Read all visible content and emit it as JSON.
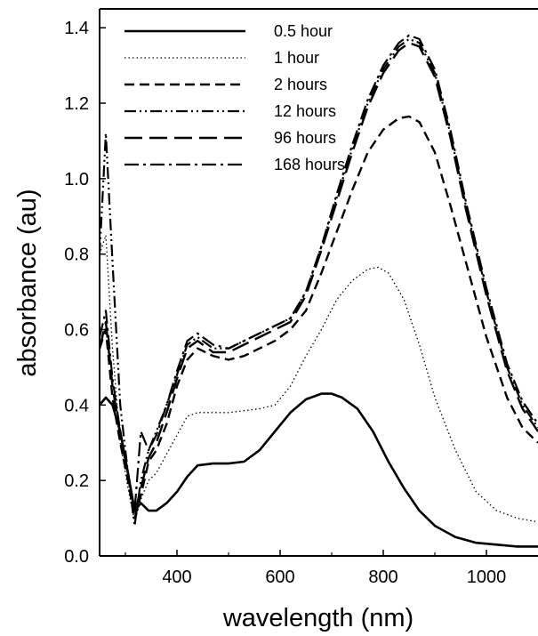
{
  "chart_data": {
    "type": "line",
    "title": "",
    "xlabel": "wavelength (nm)",
    "ylabel": "absorbance (au)",
    "xlim": [
      250,
      1100
    ],
    "ylim": [
      0.0,
      1.45
    ],
    "x_ticks": [
      {
        "value": 400,
        "label": "400"
      },
      {
        "value": 600,
        "label": "600"
      },
      {
        "value": 800,
        "label": "800"
      },
      {
        "value": 1000,
        "label": "1000"
      }
    ],
    "y_ticks": [
      {
        "value": 0.0,
        "label": "0.0"
      },
      {
        "value": 0.2,
        "label": "0.2"
      },
      {
        "value": 0.4,
        "label": "0.4"
      },
      {
        "value": 0.6,
        "label": "0.6"
      },
      {
        "value": 0.8,
        "label": "0.8"
      },
      {
        "value": 1.0,
        "label": "1.0"
      },
      {
        "value": 1.2,
        "label": "1.2"
      },
      {
        "value": 1.4,
        "label": "1.4"
      }
    ],
    "grid": false,
    "legend_position": "top-left",
    "series": [
      {
        "name": "0.5 hour",
        "line_style": "solid",
        "x": [
          250,
          262,
          275,
          290,
          305,
          318,
          330,
          345,
          360,
          380,
          400,
          420,
          440,
          470,
          500,
          530,
          560,
          590,
          620,
          650,
          680,
          700,
          720,
          750,
          780,
          810,
          840,
          870,
          900,
          940,
          980,
          1020,
          1060,
          1100
        ],
        "y": [
          0.4,
          0.42,
          0.4,
          0.33,
          0.22,
          0.12,
          0.14,
          0.12,
          0.12,
          0.14,
          0.17,
          0.21,
          0.24,
          0.245,
          0.245,
          0.25,
          0.28,
          0.33,
          0.38,
          0.415,
          0.43,
          0.43,
          0.42,
          0.39,
          0.33,
          0.25,
          0.18,
          0.12,
          0.08,
          0.05,
          0.035,
          0.03,
          0.025,
          0.025
        ]
      },
      {
        "name": "1 hour",
        "line_style": "dotted",
        "x": [
          250,
          262,
          275,
          290,
          305,
          318,
          330,
          345,
          360,
          380,
          400,
          420,
          440,
          470,
          500,
          530,
          560,
          590,
          620,
          650,
          680,
          710,
          740,
          770,
          790,
          810,
          840,
          870,
          900,
          940,
          980,
          1020,
          1060,
          1100
        ],
        "y": [
          0.8,
          0.85,
          0.55,
          0.3,
          0.18,
          0.09,
          0.15,
          0.2,
          0.22,
          0.27,
          0.32,
          0.37,
          0.38,
          0.38,
          0.38,
          0.385,
          0.39,
          0.4,
          0.45,
          0.53,
          0.6,
          0.68,
          0.73,
          0.76,
          0.765,
          0.75,
          0.68,
          0.56,
          0.42,
          0.28,
          0.17,
          0.12,
          0.1,
          0.09
        ]
      },
      {
        "name": "2 hours",
        "line_style": "dashed",
        "x": [
          250,
          262,
          275,
          290,
          305,
          318,
          330,
          345,
          360,
          380,
          400,
          420,
          440,
          470,
          500,
          530,
          560,
          590,
          620,
          650,
          680,
          710,
          740,
          770,
          800,
          830,
          850,
          870,
          900,
          930,
          960,
          1000,
          1040,
          1070,
          1100
        ],
        "y": [
          0.55,
          0.6,
          0.42,
          0.3,
          0.2,
          0.1,
          0.16,
          0.25,
          0.28,
          0.35,
          0.45,
          0.52,
          0.55,
          0.53,
          0.52,
          0.53,
          0.55,
          0.57,
          0.6,
          0.65,
          0.75,
          0.86,
          0.97,
          1.07,
          1.13,
          1.16,
          1.165,
          1.15,
          1.07,
          0.93,
          0.78,
          0.58,
          0.42,
          0.34,
          0.3
        ]
      },
      {
        "name": "12 hours",
        "line_style": "dash-dot-dot",
        "x": [
          250,
          262,
          275,
          290,
          305,
          318,
          330,
          345,
          360,
          380,
          400,
          420,
          440,
          470,
          500,
          530,
          560,
          590,
          620,
          650,
          680,
          710,
          740,
          770,
          800,
          830,
          850,
          870,
          900,
          930,
          960,
          1000,
          1040,
          1070,
          1100
        ],
        "y": [
          0.8,
          1.12,
          0.78,
          0.4,
          0.22,
          0.08,
          0.2,
          0.28,
          0.33,
          0.4,
          0.48,
          0.56,
          0.58,
          0.55,
          0.55,
          0.57,
          0.59,
          0.61,
          0.63,
          0.7,
          0.82,
          0.95,
          1.08,
          1.2,
          1.29,
          1.35,
          1.37,
          1.36,
          1.28,
          1.12,
          0.93,
          0.7,
          0.5,
          0.4,
          0.34
        ]
      },
      {
        "name": "96 hours",
        "line_style": "long-dash",
        "x": [
          250,
          262,
          275,
          290,
          305,
          318,
          330,
          345,
          360,
          380,
          400,
          420,
          440,
          470,
          500,
          530,
          560,
          590,
          620,
          650,
          680,
          710,
          740,
          770,
          800,
          830,
          850,
          870,
          900,
          930,
          960,
          1000,
          1040,
          1070,
          1100
        ],
        "y": [
          0.55,
          0.62,
          0.45,
          0.32,
          0.22,
          0.11,
          0.18,
          0.26,
          0.3,
          0.38,
          0.47,
          0.55,
          0.57,
          0.54,
          0.54,
          0.56,
          0.58,
          0.6,
          0.62,
          0.69,
          0.81,
          0.94,
          1.07,
          1.19,
          1.28,
          1.34,
          1.36,
          1.35,
          1.27,
          1.11,
          0.92,
          0.69,
          0.49,
          0.39,
          0.33
        ]
      },
      {
        "name": "168 hours",
        "line_style": "dash-dot",
        "x": [
          250,
          262,
          275,
          290,
          305,
          318,
          330,
          345,
          360,
          380,
          400,
          420,
          440,
          470,
          500,
          530,
          560,
          590,
          620,
          650,
          680,
          710,
          740,
          770,
          800,
          830,
          850,
          870,
          900,
          930,
          960,
          1000,
          1040,
          1070,
          1100
        ],
        "y": [
          0.58,
          0.65,
          0.47,
          0.33,
          0.22,
          0.12,
          0.33,
          0.28,
          0.32,
          0.4,
          0.49,
          0.57,
          0.59,
          0.56,
          0.55,
          0.57,
          0.59,
          0.61,
          0.63,
          0.7,
          0.82,
          0.96,
          1.09,
          1.21,
          1.3,
          1.36,
          1.38,
          1.37,
          1.29,
          1.13,
          0.94,
          0.71,
          0.51,
          0.41,
          0.35
        ]
      }
    ]
  }
}
